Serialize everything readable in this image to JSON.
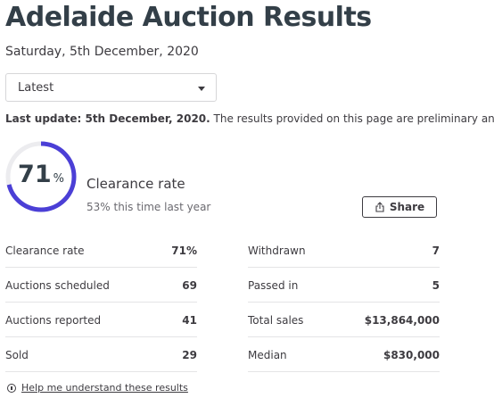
{
  "page": {
    "title": "Adelaide Auction Results",
    "date": "Saturday, 5th December, 2020"
  },
  "filter": {
    "selected": "Latest"
  },
  "update": {
    "bold": "Last update: 5th December, 2020.",
    "text": " The results provided on this page are preliminary and current"
  },
  "clearance": {
    "value": "71",
    "unit": "%",
    "fraction": 0.71,
    "label": "Clearance rate",
    "comparison": "53% this time last year",
    "ring_color": "#4b3fd6",
    "ring_track_color": "#ececef"
  },
  "share": {
    "label": "Share",
    "icon": "share-icon"
  },
  "stats_left": [
    {
      "label": "Clearance rate",
      "value": "71%"
    },
    {
      "label": "Auctions scheduled",
      "value": "69"
    },
    {
      "label": "Auctions reported",
      "value": "41"
    },
    {
      "label": "Sold",
      "value": "29"
    }
  ],
  "stats_right": [
    {
      "label": "Withdrawn",
      "value": "7"
    },
    {
      "label": "Passed in",
      "value": "5"
    },
    {
      "label": "Total sales",
      "value": "$13,864,000"
    },
    {
      "label": "Median",
      "value": "$830,000"
    }
  ],
  "help": {
    "label": "Help me understand these results",
    "icon": "info-icon"
  }
}
